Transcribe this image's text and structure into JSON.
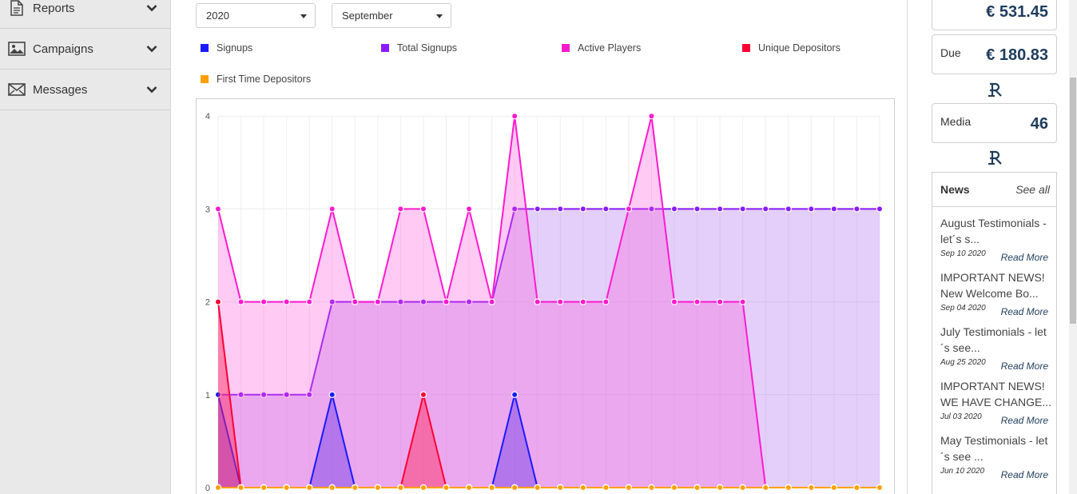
{
  "sidebar": {
    "items": [
      {
        "label": "Reports",
        "icon": "document-icon"
      },
      {
        "label": "Campaigns",
        "icon": "image-icon"
      },
      {
        "label": "Messages",
        "icon": "envelope-icon"
      }
    ]
  },
  "filters": {
    "year": "2020",
    "month": "September"
  },
  "legend": [
    {
      "label": "Signups",
      "color": "#1a1aff"
    },
    {
      "label": "Total Signups",
      "color": "#8a1aff"
    },
    {
      "label": "Active Players",
      "color": "#ff1acf"
    },
    {
      "label": "Unique Depositors",
      "color": "#ff0033"
    },
    {
      "label": "First Time Depositors",
      "color": "#ffa000"
    }
  ],
  "chart_data": {
    "type": "area",
    "ylim": [
      0,
      4
    ],
    "yticks": [
      "0",
      "1",
      "2",
      "3",
      "4"
    ],
    "x": [
      1,
      2,
      3,
      4,
      5,
      6,
      7,
      8,
      9,
      10,
      11,
      12,
      13,
      14,
      15,
      16,
      17,
      18,
      19,
      20,
      21,
      22,
      23,
      24,
      25,
      26,
      27,
      28,
      29,
      30
    ],
    "series": [
      {
        "name": "Signups",
        "color": "#1a1aff",
        "values": [
          1,
          0,
          0,
          0,
          0,
          1,
          0,
          0,
          0,
          0,
          0,
          0,
          0,
          1,
          0,
          0,
          0,
          0,
          0,
          0,
          0,
          0,
          0,
          0,
          0,
          0,
          0,
          0,
          0,
          0
        ]
      },
      {
        "name": "Total Signups",
        "color": "#8a1aff",
        "values": [
          1,
          1,
          1,
          1,
          1,
          2,
          2,
          2,
          2,
          2,
          2,
          2,
          2,
          3,
          3,
          3,
          3,
          3,
          3,
          3,
          3,
          3,
          3,
          3,
          3,
          3,
          3,
          3,
          3,
          3
        ]
      },
      {
        "name": "Active Players",
        "color": "#ff1acf",
        "values": [
          3,
          2,
          2,
          2,
          2,
          3,
          2,
          2,
          3,
          3,
          2,
          3,
          2,
          4,
          2,
          2,
          2,
          2,
          3,
          4,
          2,
          2,
          2,
          2,
          0,
          0,
          0,
          0,
          0,
          0
        ]
      },
      {
        "name": "Unique Depositors",
        "color": "#ff0033",
        "values": [
          2,
          0,
          0,
          0,
          0,
          0,
          0,
          0,
          0,
          1,
          0,
          0,
          0,
          0,
          0,
          0,
          0,
          0,
          0,
          0,
          0,
          0,
          0,
          0,
          0,
          0,
          0,
          0,
          0,
          0
        ]
      },
      {
        "name": "First Time Depositors",
        "color": "#ffa000",
        "values": [
          0,
          0,
          0,
          0,
          0,
          0,
          0,
          0,
          0,
          0,
          0,
          0,
          0,
          0,
          0,
          0,
          0,
          0,
          0,
          0,
          0,
          0,
          0,
          0,
          0,
          0,
          0,
          0,
          0,
          0
        ]
      }
    ]
  },
  "stats": {
    "top_value": "€ 531.45",
    "due_label": "Due",
    "due_value": "€ 180.83",
    "media_label": "Media",
    "media_value": "46"
  },
  "news": {
    "title": "News",
    "see_all": "See all",
    "read_more": "Read More",
    "items": [
      {
        "text": "August Testimonials - let´s s...",
        "date": "Sep 10 2020"
      },
      {
        "text": "IMPORTANT NEWS! New Welcome Bo...",
        "date": "Sep 04 2020"
      },
      {
        "text": "July Testimonials - let´s see...",
        "date": "Aug 25 2020"
      },
      {
        "text": "IMPORTANT NEWS! WE HAVE CHANGE...",
        "date": "Jul 03 2020"
      },
      {
        "text": "May Testimonials - let´s see ...",
        "date": "Jun 10 2020"
      }
    ]
  }
}
